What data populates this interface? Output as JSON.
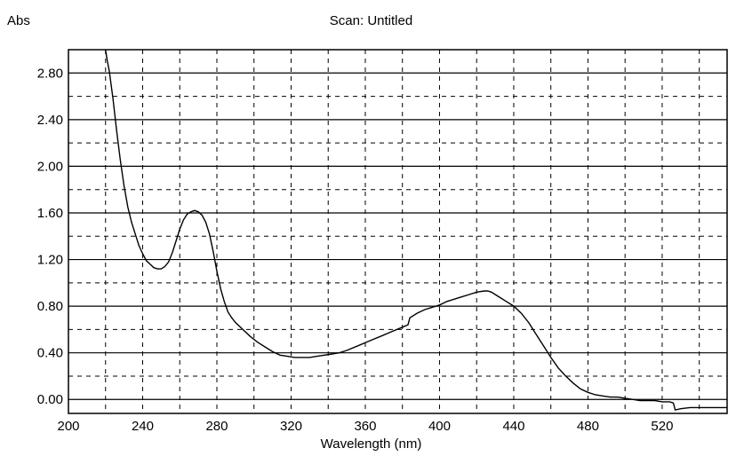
{
  "chart_data": {
    "type": "line",
    "title": "Scan: Untitled",
    "xlabel": "Wavelength (nm)",
    "ylabel": "Abs",
    "xlim": [
      200,
      555
    ],
    "ylim": [
      -0.12,
      3.0
    ],
    "x_ticks": [
      200,
      240,
      280,
      320,
      360,
      400,
      440,
      480,
      520
    ],
    "y_ticks": [
      0.0,
      0.4,
      0.8,
      1.2,
      1.6,
      2.0,
      2.4,
      2.8
    ],
    "x_tick_labels": [
      "200",
      "240",
      "280",
      "320",
      "360",
      "400",
      "440",
      "480",
      "520"
    ],
    "y_tick_labels": [
      "0.00",
      "0.40",
      "0.80",
      "1.20",
      "1.60",
      "2.00",
      "2.40",
      "2.80"
    ],
    "grid": true,
    "series": [
      {
        "x": [
          220,
          221,
          222,
          224,
          226,
          228,
          230,
          232,
          234,
          236,
          238,
          240,
          242,
          244,
          246,
          248,
          250,
          252,
          254,
          256,
          258,
          260,
          262,
          264,
          266,
          268,
          270,
          272,
          274,
          276,
          278,
          280,
          282,
          284,
          286,
          288,
          290,
          294,
          298,
          302,
          306,
          310,
          314,
          318,
          322,
          326,
          330,
          334,
          338,
          342,
          346,
          350,
          356,
          362,
          368,
          374,
          380,
          383,
          384,
          388,
          392,
          396,
          400,
          404,
          408,
          412,
          416,
          420,
          424,
          426,
          428,
          432,
          436,
          440,
          444,
          448,
          452,
          456,
          460,
          464,
          468,
          472,
          476,
          480,
          484,
          488,
          492,
          496,
          500,
          504,
          508,
          512,
          516,
          520,
          524,
          526,
          527,
          530,
          535,
          540,
          545,
          550,
          555
        ],
        "y": [
          3.02,
          2.9,
          2.82,
          2.58,
          2.3,
          2.05,
          1.83,
          1.65,
          1.52,
          1.42,
          1.32,
          1.25,
          1.19,
          1.16,
          1.13,
          1.12,
          1.12,
          1.14,
          1.18,
          1.26,
          1.36,
          1.46,
          1.54,
          1.59,
          1.61,
          1.62,
          1.61,
          1.58,
          1.52,
          1.42,
          1.27,
          1.1,
          0.95,
          0.84,
          0.75,
          0.7,
          0.66,
          0.6,
          0.54,
          0.49,
          0.45,
          0.41,
          0.38,
          0.37,
          0.36,
          0.36,
          0.36,
          0.37,
          0.38,
          0.39,
          0.4,
          0.42,
          0.46,
          0.5,
          0.54,
          0.58,
          0.62,
          0.64,
          0.7,
          0.74,
          0.77,
          0.79,
          0.81,
          0.84,
          0.86,
          0.88,
          0.9,
          0.92,
          0.93,
          0.93,
          0.92,
          0.88,
          0.84,
          0.8,
          0.74,
          0.66,
          0.56,
          0.46,
          0.36,
          0.27,
          0.2,
          0.14,
          0.09,
          0.06,
          0.04,
          0.03,
          0.02,
          0.02,
          0.01,
          0.0,
          -0.01,
          -0.01,
          -0.01,
          -0.02,
          -0.02,
          -0.03,
          -0.09,
          -0.08,
          -0.07,
          -0.07,
          -0.07,
          -0.07,
          -0.07
        ]
      }
    ]
  }
}
